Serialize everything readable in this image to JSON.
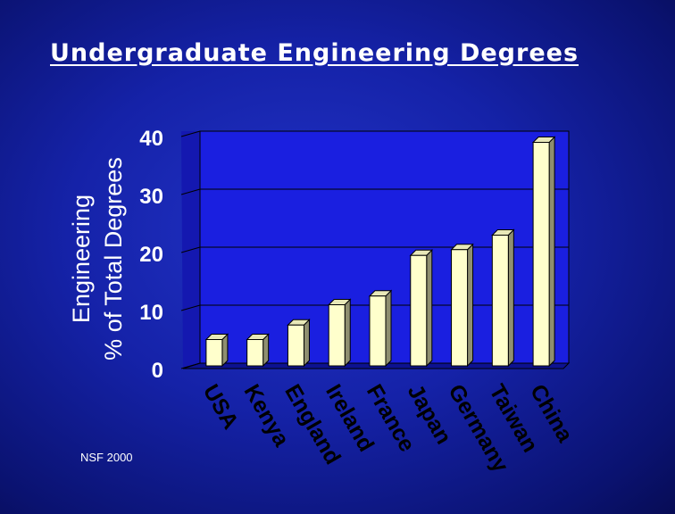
{
  "title": "Undergraduate Engineering Degrees",
  "footnote": "NSF 2000",
  "chart_data": {
    "type": "bar",
    "title": "Undergraduate Engineering Degrees",
    "ylabel": [
      "Engineering",
      "% of Total Degrees"
    ],
    "xlabel": "",
    "categories": [
      "USA",
      "Kenya",
      "England",
      "Ireland",
      "France",
      "Japan",
      "Germany",
      "Taiwan",
      "China"
    ],
    "values": [
      5,
      5,
      7.5,
      11,
      12.5,
      19.5,
      20.5,
      23,
      39
    ],
    "ylim": [
      0,
      40
    ],
    "yticks": [
      0,
      10,
      20,
      30,
      40
    ],
    "grid": true,
    "legend": "none",
    "colors": {
      "bar_face": "#ffffcc",
      "bar_side": "#8f8f70",
      "bar_top": "#e8e8b8",
      "plot_back": "#1a1fe0",
      "plot_floor": "#0d1290",
      "plot_side": "#1418b0",
      "text": "#ffffff",
      "tick_text": "#000000"
    }
  }
}
